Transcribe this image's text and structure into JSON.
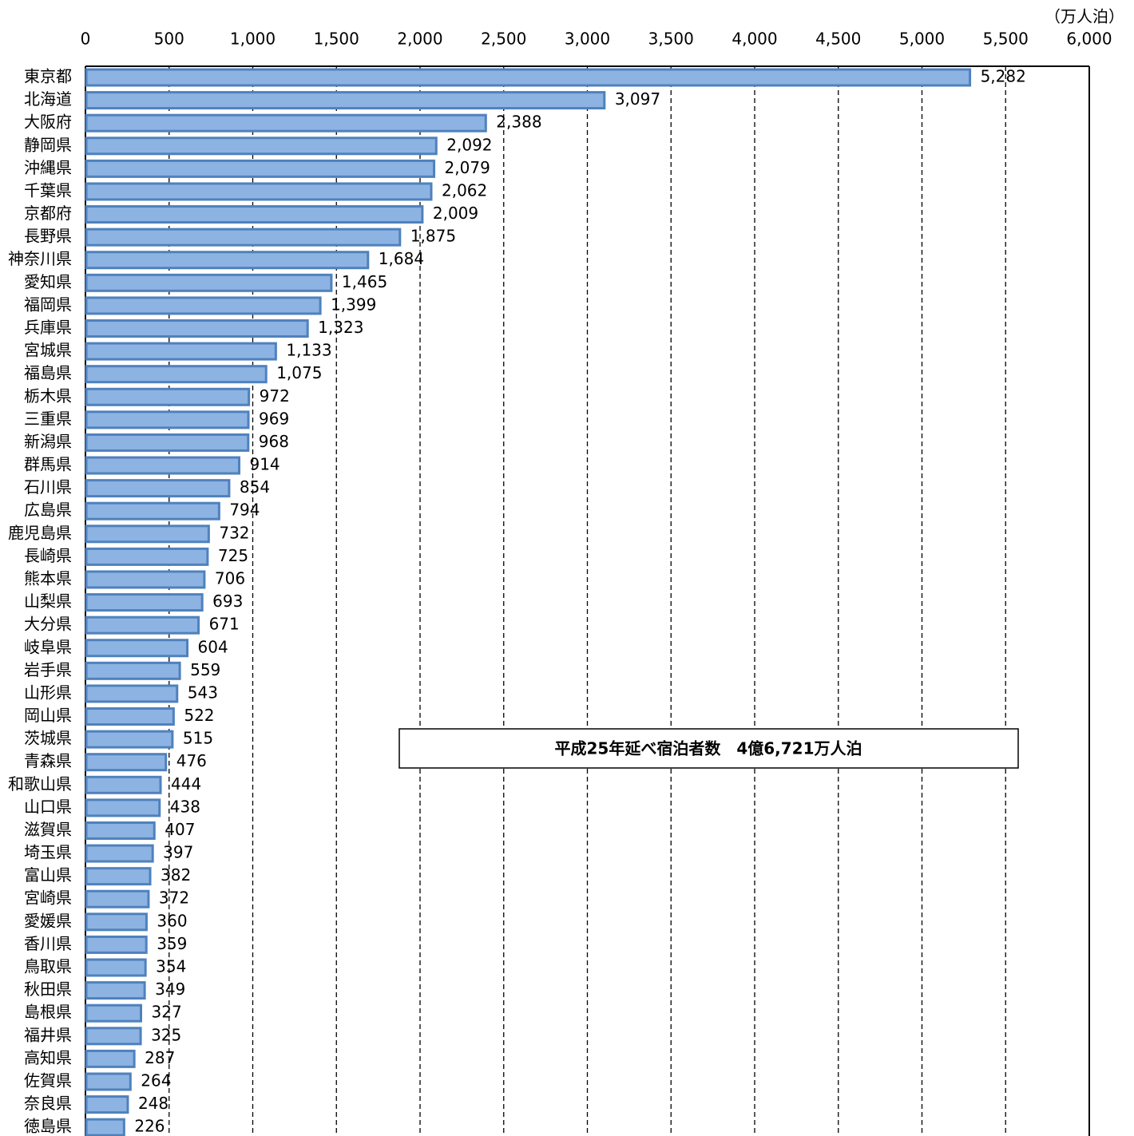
{
  "chart_data": {
    "type": "bar",
    "orientation": "horizontal",
    "unit_label": "（万人泊）",
    "annotation": "平成25年延べ宿泊者数　4億6,721万人泊",
    "categories": [
      "東京都",
      "北海道",
      "大阪府",
      "静岡県",
      "沖縄県",
      "千葉県",
      "京都府",
      "長野県",
      "神奈川県",
      "愛知県",
      "福岡県",
      "兵庫県",
      "宮城県",
      "福島県",
      "栃木県",
      "三重県",
      "新潟県",
      "群馬県",
      "石川県",
      "広島県",
      "鹿児島県",
      "長崎県",
      "熊本県",
      "山梨県",
      "大分県",
      "岐阜県",
      "岩手県",
      "山形県",
      "岡山県",
      "茨城県",
      "青森県",
      "和歌山県",
      "山口県",
      "滋賀県",
      "埼玉県",
      "富山県",
      "宮崎県",
      "愛媛県",
      "香川県",
      "鳥取県",
      "秋田県",
      "島根県",
      "福井県",
      "高知県",
      "佐賀県",
      "奈良県",
      "徳島県"
    ],
    "values": [
      5282,
      3097,
      2388,
      2092,
      2079,
      2062,
      2009,
      1875,
      1684,
      1465,
      1399,
      1323,
      1133,
      1075,
      972,
      969,
      968,
      914,
      854,
      794,
      732,
      725,
      706,
      693,
      671,
      604,
      559,
      543,
      522,
      515,
      476,
      444,
      438,
      407,
      397,
      382,
      372,
      360,
      359,
      354,
      349,
      327,
      325,
      287,
      264,
      248,
      226
    ],
    "value_labels": [
      "5,282",
      "3,097",
      "2,388",
      "2,092",
      "2,079",
      "2,062",
      "2,009",
      "1,875",
      "1,684",
      "1,465",
      "1,399",
      "1,323",
      "1,133",
      "1,075",
      "972",
      "969",
      "968",
      "914",
      "854",
      "794",
      "732",
      "725",
      "706",
      "693",
      "671",
      "604",
      "559",
      "543",
      "522",
      "515",
      "476",
      "444",
      "438",
      "407",
      "397",
      "382",
      "372",
      "360",
      "359",
      "354",
      "349",
      "327",
      "325",
      "287",
      "264",
      "248",
      "226"
    ],
    "color": "#8db3e2",
    "edge_color": "#4f81bd",
    "xlim": [
      0,
      6000
    ],
    "xticks": [
      0,
      500,
      {
        "value": 1000,
        "label": "1,000"
      },
      {
        "value": 1500,
        "label": "1,500"
      },
      {
        "value": 2000,
        "label": "2,000"
      },
      {
        "value": 2500,
        "label": "2,500"
      },
      {
        "value": 3000,
        "label": "3,000"
      },
      {
        "value": 3500,
        "label": "3,500"
      },
      {
        "value": 4000,
        "label": "4,000"
      },
      {
        "value": 4500,
        "label": "4,500"
      },
      {
        "value": 5000,
        "label": "5,000"
      },
      {
        "value": 5500,
        "label": "5,500"
      },
      {
        "value": 6000,
        "label": "6,000"
      }
    ],
    "grid": true
  }
}
